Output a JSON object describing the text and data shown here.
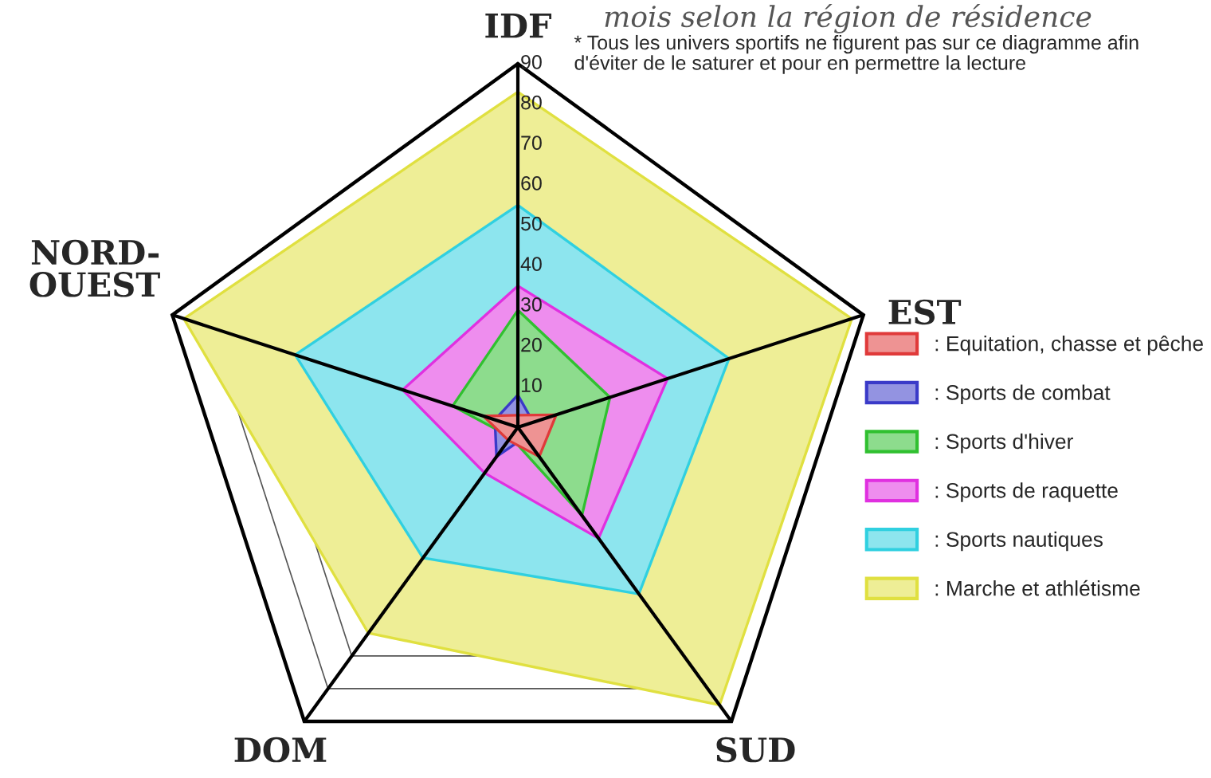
{
  "chart_data": {
    "type": "radar",
    "title": "mois selon la région de résidence",
    "annotations": [
      "* Tous les univers sportifs ne figurent pas sur ce diagramme afin\nd'éviter de le saturer et pour en permettre la lecture"
    ],
    "categories": [
      "IDF",
      "EST",
      "SUD",
      "DOM",
      "NORD-\nOUEST"
    ],
    "ylim": [
      0,
      90
    ],
    "yticks": [
      10,
      20,
      30,
      40,
      50,
      60,
      70,
      80,
      90
    ],
    "grid": true,
    "legend": "right",
    "series": [
      {
        "name": ": Equitation, chasse et pêche",
        "color": "#e03a3a",
        "values": [
          3,
          10,
          9,
          4,
          9
        ]
      },
      {
        "name": ": Sports de combat",
        "color": "#3a3ac8",
        "values": [
          8,
          4,
          3,
          9,
          6
        ]
      },
      {
        "name": ": Sports d'hiver",
        "color": "#30c030",
        "values": [
          29,
          24,
          27,
          3,
          17
        ]
      },
      {
        "name": ": Sports de raquette",
        "color": "#e030e0",
        "values": [
          35,
          39,
          34,
          14,
          30
        ]
      },
      {
        "name": ": Sports nautiques",
        "color": "#30d0e0",
        "values": [
          55,
          55,
          51,
          40,
          58
        ]
      },
      {
        "name": ": Marche et athlétisme",
        "color": "#e0e040",
        "values": [
          83,
          87,
          85,
          63,
          87
        ]
      }
    ]
  }
}
